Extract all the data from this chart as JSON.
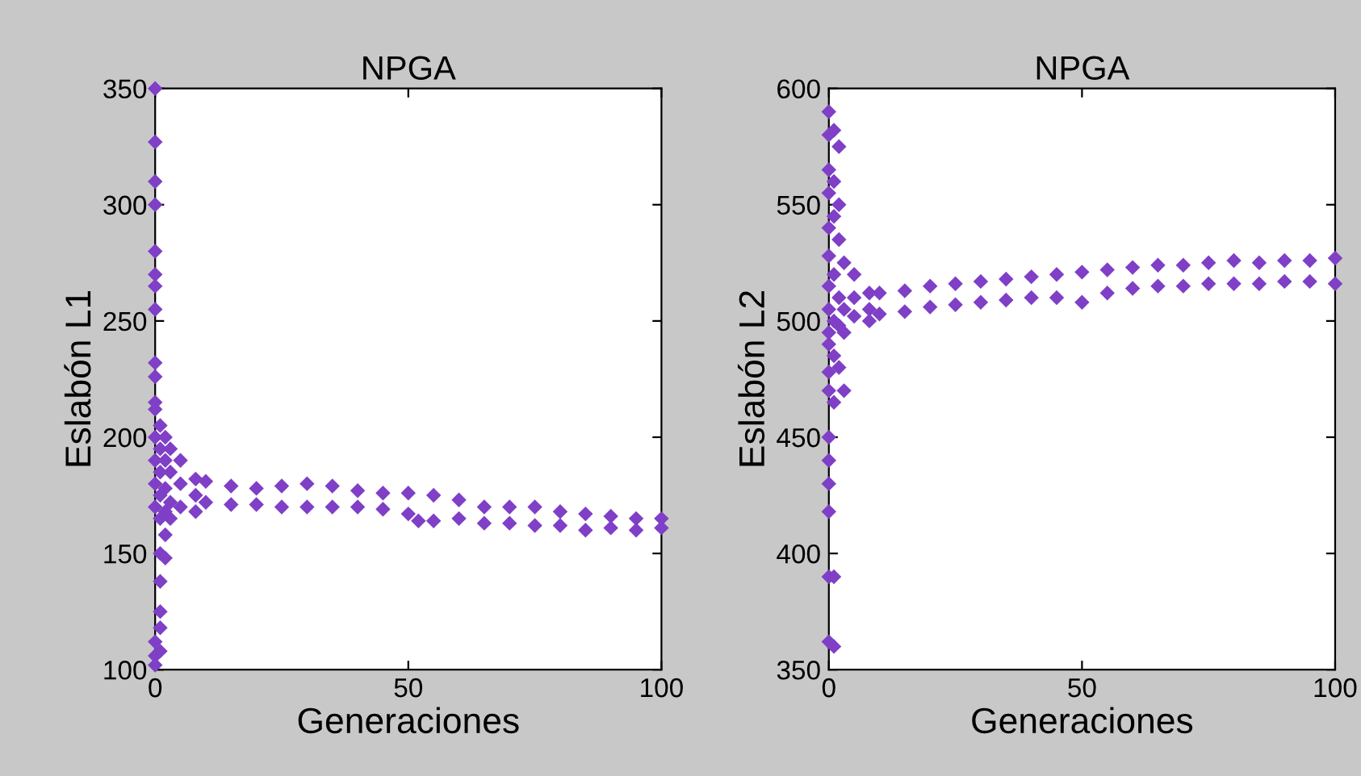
{
  "chart_data": [
    {
      "type": "scatter",
      "title": "NPGA",
      "xlabel": "Generaciones",
      "ylabel": "Eslabón L1",
      "color": "#7f3fc6",
      "marker": "diamond",
      "grid": false,
      "xlim": [
        0,
        100
      ],
      "ylim": [
        100,
        350
      ],
      "xticks": [
        0,
        50,
        100
      ],
      "yticks": [
        100,
        150,
        200,
        250,
        300,
        350
      ],
      "x": [
        0,
        0,
        0,
        0,
        0,
        0,
        0,
        0,
        0,
        0,
        0,
        0,
        0,
        0,
        0,
        0,
        0,
        0,
        0,
        1,
        1,
        1,
        1,
        1,
        1,
        1,
        1,
        1,
        1,
        2,
        2,
        2,
        2,
        2,
        2,
        3,
        3,
        3,
        3,
        5,
        5,
        5,
        8,
        8,
        8,
        10,
        10,
        15,
        15,
        20,
        20,
        25,
        25,
        30,
        30,
        35,
        35,
        40,
        40,
        45,
        45,
        50,
        50,
        52,
        55,
        55,
        60,
        60,
        65,
        65,
        70,
        70,
        75,
        75,
        80,
        80,
        85,
        85,
        90,
        90,
        95,
        95,
        100,
        100
      ],
      "values": [
        350,
        327,
        310,
        300,
        280,
        270,
        265,
        255,
        232,
        226,
        215,
        212,
        200,
        190,
        180,
        170,
        112,
        106,
        102,
        205,
        195,
        185,
        175,
        165,
        150,
        138,
        125,
        118,
        108,
        200,
        190,
        178,
        168,
        158,
        148,
        195,
        185,
        172,
        165,
        190,
        180,
        170,
        182,
        175,
        168,
        181,
        172,
        179,
        171,
        178,
        171,
        179,
        170,
        180,
        170,
        179,
        170,
        177,
        170,
        176,
        169,
        176,
        167,
        164,
        175,
        164,
        173,
        165,
        170,
        163,
        170,
        163,
        170,
        162,
        168,
        162,
        167,
        160,
        166,
        161,
        165,
        160,
        165,
        161
      ]
    },
    {
      "type": "scatter",
      "title": "NPGA",
      "xlabel": "Generaciones",
      "ylabel": "Eslabón L2",
      "color": "#7f3fc6",
      "marker": "diamond",
      "grid": false,
      "xlim": [
        0,
        100
      ],
      "ylim": [
        350,
        600
      ],
      "xticks": [
        0,
        50,
        100
      ],
      "yticks": [
        350,
        400,
        450,
        500,
        550,
        600
      ],
      "x": [
        0,
        0,
        0,
        0,
        0,
        0,
        0,
        0,
        0,
        0,
        0,
        0,
        0,
        0,
        0,
        0,
        0,
        0,
        1,
        1,
        1,
        1,
        1,
        1,
        1,
        1,
        1,
        2,
        2,
        2,
        2,
        2,
        2,
        3,
        3,
        3,
        3,
        5,
        5,
        5,
        8,
        8,
        8,
        10,
        10,
        15,
        15,
        20,
        20,
        25,
        25,
        30,
        30,
        35,
        35,
        40,
        40,
        45,
        45,
        50,
        50,
        55,
        55,
        60,
        60,
        65,
        65,
        70,
        70,
        75,
        75,
        80,
        80,
        85,
        85,
        90,
        90,
        95,
        95,
        100,
        100
      ],
      "values": [
        590,
        580,
        565,
        555,
        540,
        528,
        515,
        505,
        495,
        490,
        478,
        470,
        450,
        440,
        430,
        418,
        390,
        362,
        582,
        560,
        545,
        520,
        500,
        485,
        465,
        390,
        360,
        575,
        550,
        535,
        510,
        498,
        480,
        525,
        505,
        495,
        470,
        520,
        510,
        502,
        512,
        505,
        500,
        512,
        503,
        513,
        504,
        515,
        506,
        516,
        507,
        517,
        508,
        518,
        509,
        519,
        510,
        520,
        510,
        521,
        508,
        522,
        512,
        523,
        514,
        524,
        515,
        524,
        515,
        525,
        516,
        526,
        516,
        525,
        516,
        526,
        517,
        526,
        517,
        527,
        516
      ]
    }
  ]
}
